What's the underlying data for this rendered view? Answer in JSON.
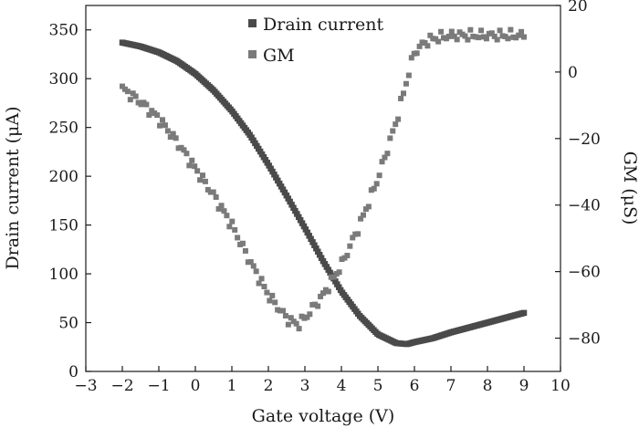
{
  "chart_data": {
    "type": "scatter",
    "title": "",
    "xlabel": "Gate voltage (V)",
    "ylabel": "Drain current (μA)",
    "y2label": "GM (μS)",
    "xlim": [
      -3,
      10
    ],
    "ylim": [
      0,
      375
    ],
    "y2lim": [
      -90,
      20
    ],
    "x_ticks": [
      -3,
      -2,
      -1,
      0,
      1,
      2,
      3,
      4,
      5,
      6,
      7,
      8,
      9,
      10
    ],
    "x_tick_labels": [
      "−3",
      "−2",
      "−1",
      "0",
      "1",
      "2",
      "3",
      "4",
      "5",
      "6",
      "7",
      "8",
      "9",
      "10"
    ],
    "y_ticks": [
      0,
      50,
      100,
      150,
      200,
      250,
      300,
      350
    ],
    "y_tick_labels": [
      "0",
      "50",
      "100",
      "150",
      "200",
      "250",
      "300",
      "350"
    ],
    "y2_ticks": [
      -80,
      -60,
      -40,
      -20,
      0,
      20
    ],
    "y2_tick_labels": [
      "−80",
      "−60",
      "−40",
      "−20",
      "0",
      "20"
    ],
    "grid": false,
    "legend_position": "top-center",
    "series": [
      {
        "name": "Drain current",
        "axis": "left",
        "color": "#4a4a4a",
        "x": [
          -2,
          -1.5,
          -1,
          -0.5,
          0,
          0.5,
          1,
          1.5,
          2,
          2.5,
          3,
          3.5,
          4,
          4.5,
          5,
          5.5,
          5.8,
          6,
          6.5,
          7,
          7.5,
          8,
          8.5,
          9
        ],
        "values": [
          337,
          333,
          327,
          318,
          305,
          288,
          267,
          242,
          212,
          180,
          147,
          113,
          82,
          57,
          38,
          29,
          28,
          30,
          34,
          40,
          45,
          50,
          55,
          60
        ]
      },
      {
        "name": "GM",
        "axis": "right",
        "color": "#7a7a7a",
        "x": [
          -2,
          -1.5,
          -1,
          -0.5,
          0,
          0.5,
          1,
          1.5,
          2,
          2.5,
          2.8,
          3,
          3.5,
          4,
          4.5,
          5,
          5.5,
          5.8,
          6,
          6.3,
          6.5,
          7,
          7.5,
          8,
          8.5,
          9
        ],
        "values": [
          -5,
          -9,
          -14,
          -21,
          -29,
          -37,
          -46,
          -57,
          -67,
          -74,
          -76,
          -74,
          -67,
          -58,
          -46,
          -32,
          -15,
          -2,
          6,
          9,
          10,
          11,
          11,
          11,
          11,
          11
        ]
      }
    ]
  }
}
